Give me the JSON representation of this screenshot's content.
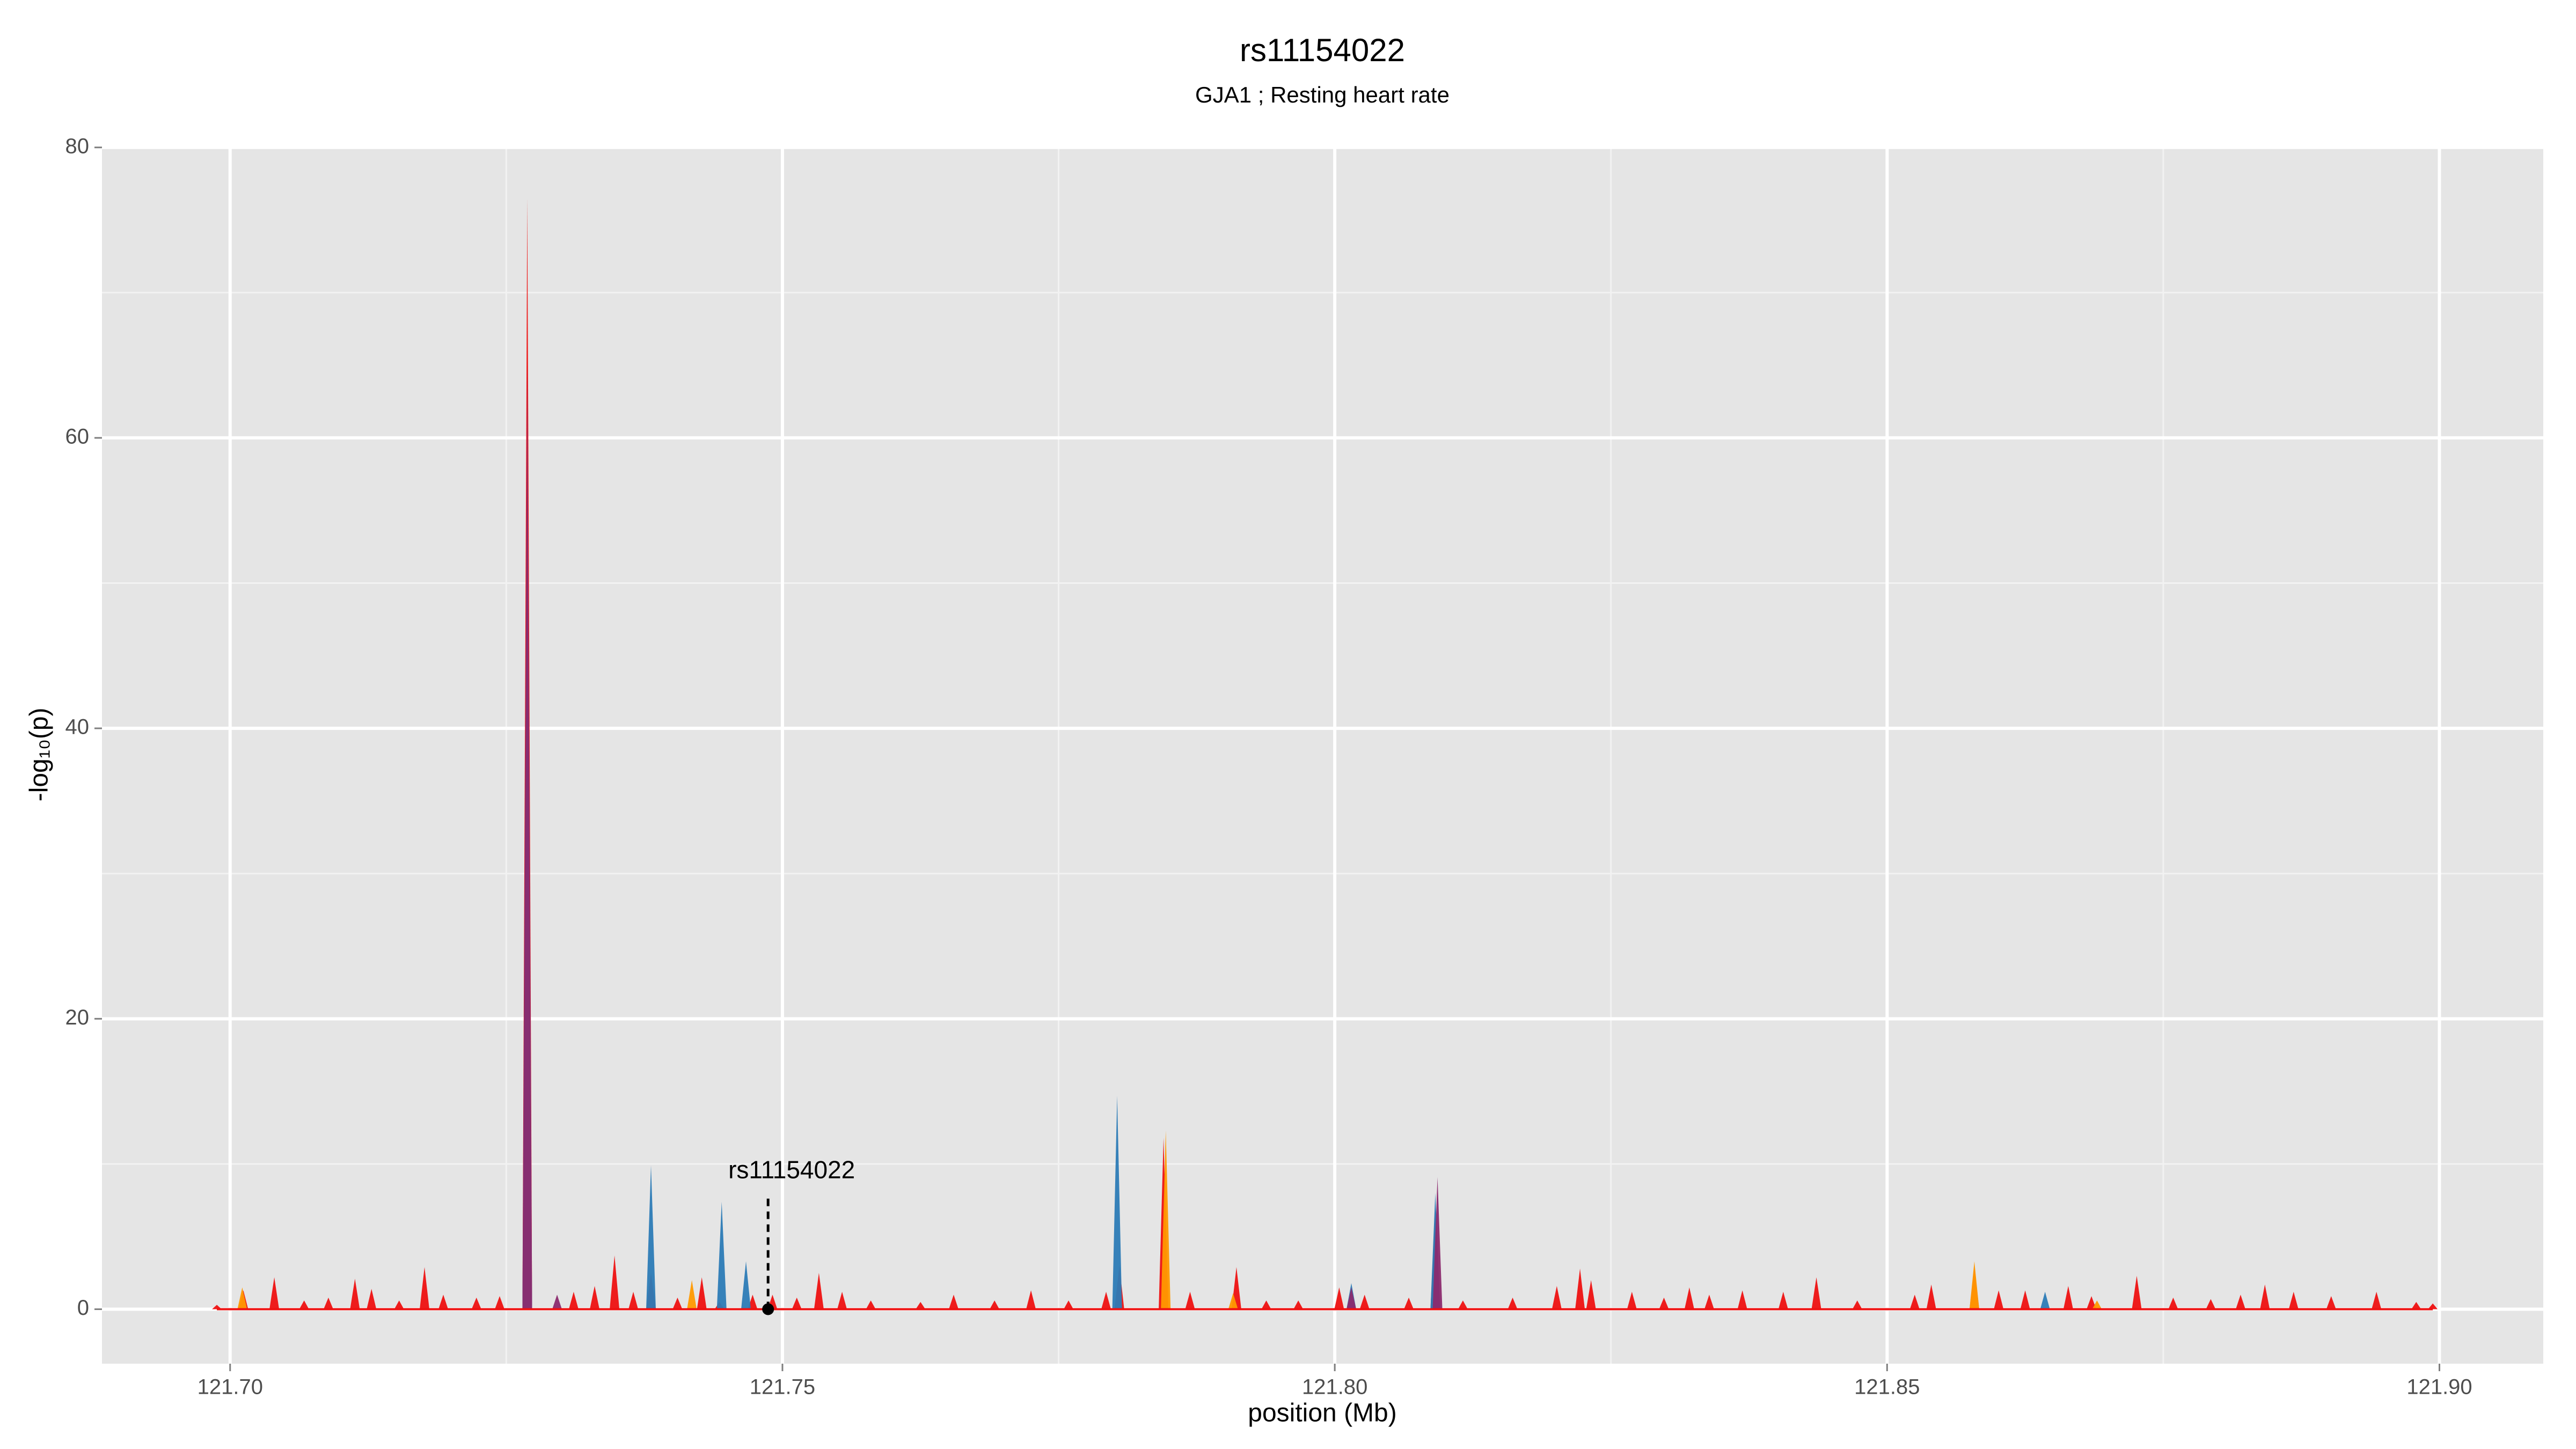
{
  "chart_data": {
    "type": "area",
    "title": "rs11154022",
    "subtitle": "GJA1 ; Resting heart rate",
    "xlabel": "position (Mb)",
    "ylabel": "-log₁₀(p)",
    "xlim": [
      121.6884,
      121.9094
    ],
    "ylim": [
      -3.75,
      80.1
    ],
    "xticks": [
      {
        "value": 121.7,
        "label": "121.70"
      },
      {
        "value": 121.75,
        "label": "121.75"
      },
      {
        "value": 121.8,
        "label": "121.80"
      },
      {
        "value": 121.85,
        "label": "121.85"
      },
      {
        "value": 121.9,
        "label": "121.90"
      }
    ],
    "yticks": [
      0,
      20,
      40,
      60,
      80
    ],
    "xminor": [
      121.725,
      121.775,
      121.825,
      121.875
    ],
    "yminor": [
      10,
      30,
      50,
      70
    ],
    "grid": true,
    "series": [
      {
        "name": "red",
        "color": "#ee1111",
        "x": [
          121.6988,
          121.7012,
          121.704,
          121.7067,
          121.7089,
          121.7113,
          121.7128,
          121.7153,
          121.7176,
          121.7193,
          121.7223,
          121.7244,
          121.7269,
          121.7311,
          121.733,
          121.7348,
          121.7365,
          121.7381,
          121.7405,
          121.7427,
          121.7443,
          121.7473,
          121.7491,
          121.7513,
          121.7533,
          121.7554,
          121.758,
          121.7625,
          121.7655,
          121.7692,
          121.7725,
          121.7759,
          121.7793,
          121.7805,
          121.7845,
          121.7869,
          121.7911,
          121.7938,
          121.7967,
          121.8004,
          121.8027,
          121.8067,
          121.8091,
          121.8116,
          121.8161,
          121.8201,
          121.8222,
          121.8232,
          121.8269,
          121.8298,
          121.8321,
          121.8339,
          121.8369,
          121.8406,
          121.8436,
          121.8473,
          121.8525,
          121.854,
          121.8579,
          121.8601,
          121.8625,
          121.8664,
          121.8685,
          121.8726,
          121.8759,
          121.8793,
          121.882,
          121.8842,
          121.8868,
          121.8902,
          121.8943,
          121.8979,
          121.8994
        ],
        "values": [
          0.3,
          1.3,
          2.2,
          0.6,
          0.8,
          2.1,
          1.4,
          0.6,
          2.9,
          1,
          0.8,
          0.9,
          76.5,
          1.2,
          1.6,
          3.7,
          1.2,
          2.5,
          0.8,
          2.2,
          0.5,
          1,
          1,
          0.8,
          2.5,
          1.2,
          0.6,
          0.5,
          1,
          0.6,
          1.3,
          0.6,
          1.2,
          3,
          11.8,
          1.2,
          2.9,
          0.6,
          0.6,
          1.5,
          1,
          0.8,
          7,
          0.6,
          0.8,
          1.6,
          2.8,
          2,
          1.2,
          0.8,
          1.5,
          1,
          1.3,
          1.2,
          2.2,
          0.6,
          1,
          1.7,
          3,
          1.3,
          1.3,
          1.6,
          0.9,
          2.3,
          0.8,
          0.7,
          1,
          1.7,
          1.2,
          0.9,
          1.2,
          0.5,
          0.4
        ]
      },
      {
        "name": "orange",
        "color": "#ff9900",
        "x": [
          121.7011,
          121.7418,
          121.7847,
          121.7908,
          121.8579,
          121.869
        ],
        "values": [
          1.5,
          2,
          12.3,
          1.1,
          3.3,
          0.6
        ]
      },
      {
        "name": "blue",
        "color": "#2c7bb6",
        "x": [
          121.7269,
          121.7381,
          121.7445,
          121.7467,
          121.7803,
          121.8015,
          121.8091,
          121.8643
        ],
        "values": [
          50,
          9.9,
          7.4,
          3.3,
          14.7,
          1.8,
          8,
          1.2
        ]
      },
      {
        "name": "purple",
        "color": "#8b2a6e",
        "x": [
          121.7269,
          121.7296,
          121.8015,
          121.8093
        ],
        "values": [
          65,
          1,
          1.5,
          9.1
        ]
      }
    ],
    "annotation": {
      "text": "rs11154022",
      "x": 121.7487,
      "y": 0
    }
  }
}
